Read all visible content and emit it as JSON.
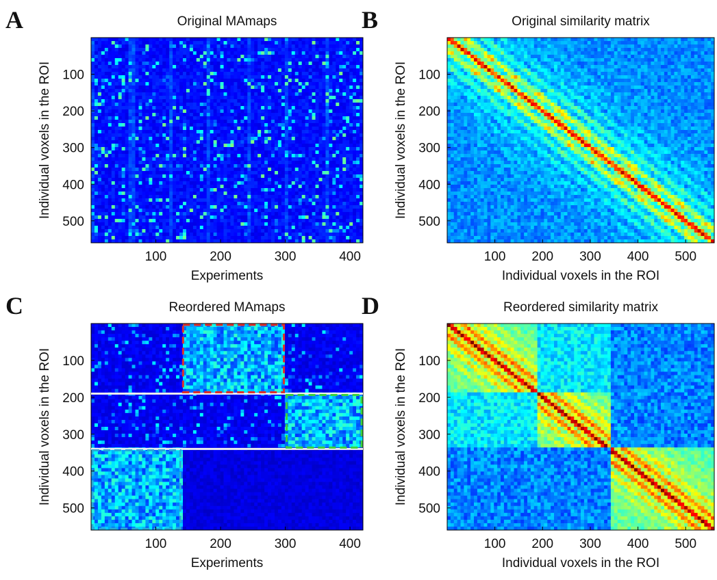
{
  "chart_data": [
    {
      "type": "heatmap",
      "panel_label": "A",
      "title": "Original MAmaps",
      "xlabel": "Experiments",
      "ylabel": "Individual voxels in the ROI",
      "xlim": [
        0,
        420
      ],
      "ylim": [
        0,
        560
      ],
      "xticks": [
        100,
        200,
        300,
        400
      ],
      "yticks": [
        100,
        200,
        300,
        400,
        500
      ],
      "pattern": "maps"
    },
    {
      "type": "heatmap",
      "panel_label": "B",
      "title": "Original similarity matrix",
      "xlabel": "Individual voxels in the ROI",
      "ylabel": "Individual voxels in the ROI",
      "xlim": [
        0,
        560
      ],
      "ylim": [
        0,
        560
      ],
      "xticks": [
        100,
        200,
        300,
        400,
        500
      ],
      "yticks": [
        100,
        200,
        300,
        400,
        500
      ],
      "pattern": "similarity"
    },
    {
      "type": "heatmap",
      "panel_label": "C",
      "title": "Reordered MAmaps",
      "xlabel": "Experiments",
      "ylabel": "Individual voxels in the ROI",
      "xlim": [
        0,
        420
      ],
      "ylim": [
        0,
        560
      ],
      "xticks": [
        100,
        200,
        300,
        400
      ],
      "yticks": [
        100,
        200,
        300,
        400,
        500
      ],
      "pattern": "reordered-maps",
      "separators": [
        190,
        340
      ],
      "boxes": [
        {
          "color": "#e0302a",
          "x": [
            140,
            300
          ],
          "y": [
            0,
            190
          ]
        },
        {
          "color": "#3cd23c",
          "x": [
            300,
            420
          ],
          "y": [
            190,
            340
          ]
        },
        {
          "color": "#29a8d8",
          "x": [
            0,
            140
          ],
          "y": [
            340,
            560
          ]
        }
      ]
    },
    {
      "type": "heatmap",
      "panel_label": "D",
      "title": "Reordered similarity matrix",
      "xlabel": "Individual voxels in the ROI",
      "ylabel": "Individual voxels in the ROI",
      "xlim": [
        0,
        560
      ],
      "ylim": [
        0,
        560
      ],
      "xticks": [
        100,
        200,
        300,
        400,
        500
      ],
      "yticks": [
        100,
        200,
        300,
        400,
        500
      ],
      "pattern": "reordered-similarity"
    }
  ]
}
